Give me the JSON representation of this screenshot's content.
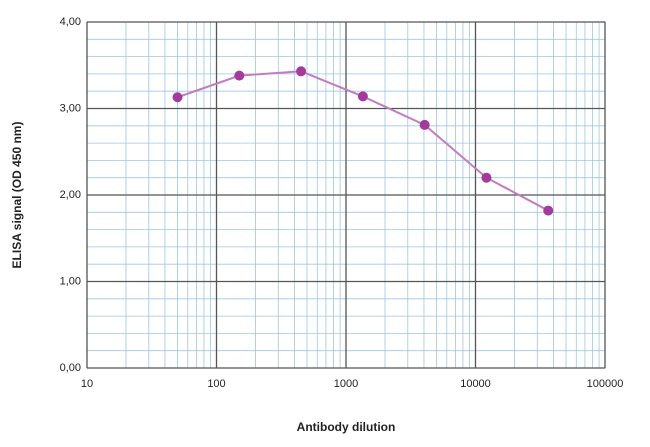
{
  "chart_data": {
    "type": "line",
    "xlabel": "Antibody dilution",
    "ylabel": "ELISA signal (OD 450 nm)",
    "x": [
      50,
      150,
      450,
      1350,
      4050,
      12150,
      36450
    ],
    "series": [
      {
        "color": "#a23b9c",
        "values": [
          3.13,
          3.38,
          3.43,
          3.14,
          2.81,
          2.2,
          1.82
        ]
      }
    ],
    "xscale": "log",
    "xlim": [
      10,
      100000
    ],
    "xticks": [
      10,
      100,
      1000,
      10000,
      100000
    ],
    "ylim": [
      0,
      4
    ],
    "yticks": [
      {
        "value": 0,
        "label": "0,00"
      },
      {
        "value": 1,
        "label": "1,00"
      },
      {
        "value": 2,
        "label": "2,00"
      },
      {
        "value": 3,
        "label": "3,00"
      },
      {
        "value": 4,
        "label": "4,00"
      }
    ],
    "grid": true
  }
}
